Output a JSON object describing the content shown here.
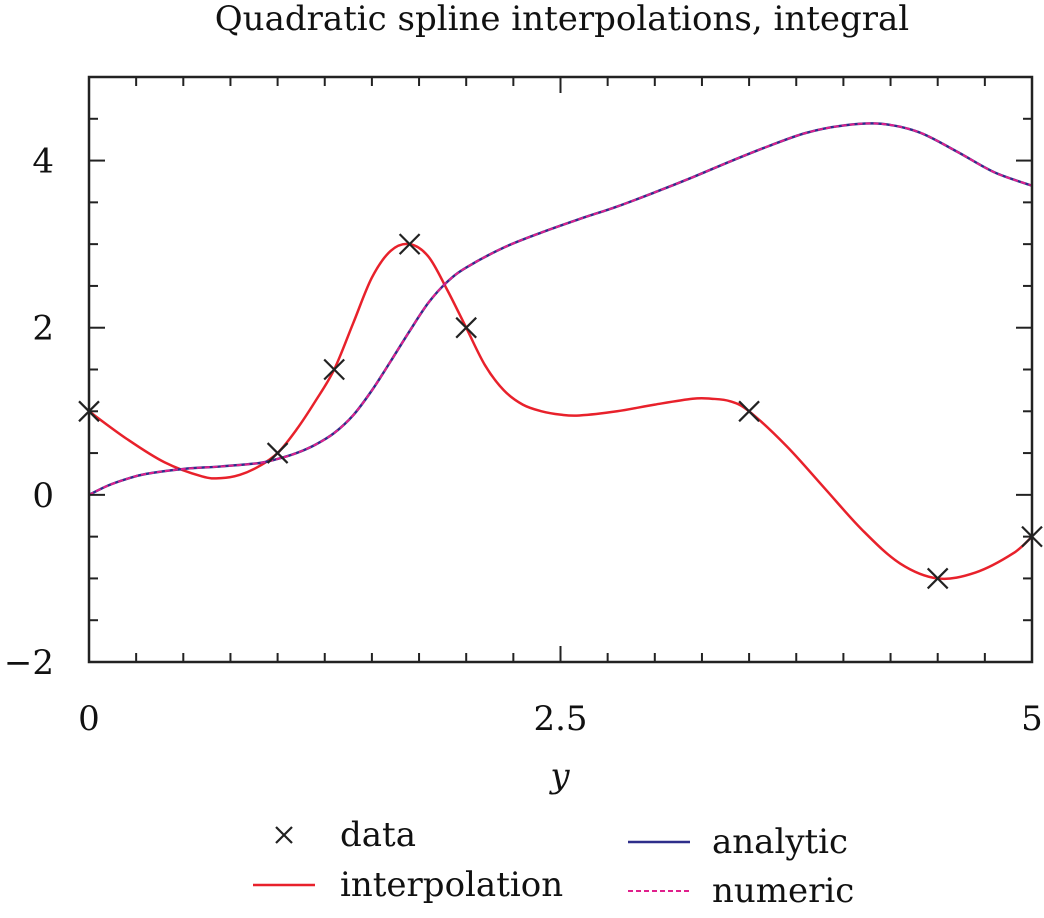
{
  "chart_data": {
    "type": "line",
    "title": "Quadratic spline interpolations, integral",
    "xlabel": "y",
    "ylabel": "",
    "xlim": [
      0,
      5
    ],
    "ylim": [
      -2,
      5
    ],
    "xticks": [
      {
        "value": 0,
        "label": "0"
      },
      {
        "value": 2.5,
        "label": "2.5"
      },
      {
        "value": 5,
        "label": "5"
      }
    ],
    "yticks": [
      {
        "value": -2,
        "label": "−2"
      },
      {
        "value": 0,
        "label": "0"
      },
      {
        "value": 2,
        "label": "2"
      },
      {
        "value": 4,
        "label": "4"
      }
    ],
    "x_minor_step": 0.25,
    "y_minor_step": 0.5,
    "grid": false,
    "legend_position": "bottom",
    "series": [
      {
        "name": "data",
        "kind": "markers",
        "marker": "x",
        "color": "#222222",
        "x": [
          0,
          1.0,
          1.3,
          1.7,
          2.0,
          3.5,
          4.5,
          5.0
        ],
        "y": [
          1.0,
          0.5,
          1.5,
          3.0,
          2.0,
          1.0,
          -1.0,
          -0.5
        ]
      },
      {
        "name": "interpolation",
        "kind": "line",
        "color": "#e8212b",
        "x": [
          0,
          0.2,
          0.4,
          0.6,
          0.7,
          0.8,
          0.9,
          1.0,
          1.1,
          1.2,
          1.3,
          1.4,
          1.5,
          1.6,
          1.7,
          1.8,
          1.9,
          2.0,
          2.1,
          2.2,
          2.3,
          2.4,
          2.5,
          2.6,
          2.8,
          3.0,
          3.2,
          3.3,
          3.4,
          3.5,
          3.7,
          3.9,
          4.1,
          4.3,
          4.5,
          4.7,
          4.9,
          5.0
        ],
        "y": [
          1.0,
          0.67,
          0.39,
          0.22,
          0.2,
          0.24,
          0.34,
          0.5,
          0.78,
          1.12,
          1.5,
          2.05,
          2.6,
          2.92,
          3.0,
          2.85,
          2.45,
          2.0,
          1.55,
          1.25,
          1.08,
          1.0,
          0.96,
          0.95,
          1.0,
          1.08,
          1.15,
          1.15,
          1.12,
          1.0,
          0.58,
          0.08,
          -0.42,
          -0.82,
          -1.0,
          -0.93,
          -0.7,
          -0.5
        ]
      },
      {
        "name": "analytic",
        "kind": "line",
        "color": "#2e2e8a",
        "x": [
          0,
          0.1,
          0.2,
          0.3,
          0.5,
          0.7,
          0.9,
          1.0,
          1.1,
          1.2,
          1.3,
          1.4,
          1.5,
          1.6,
          1.7,
          1.8,
          1.9,
          2.0,
          2.2,
          2.4,
          2.6,
          2.8,
          3.0,
          3.2,
          3.4,
          3.6,
          3.8,
          4.0,
          4.2,
          4.4,
          4.6,
          4.8,
          5.0
        ],
        "y": [
          0.0,
          0.11,
          0.19,
          0.25,
          0.31,
          0.34,
          0.38,
          0.43,
          0.5,
          0.6,
          0.74,
          0.95,
          1.25,
          1.6,
          1.96,
          2.3,
          2.55,
          2.72,
          2.96,
          3.14,
          3.3,
          3.45,
          3.62,
          3.8,
          3.99,
          4.17,
          4.33,
          4.42,
          4.44,
          4.34,
          4.11,
          3.86,
          3.7
        ]
      },
      {
        "name": "numeric",
        "kind": "line",
        "dashed": true,
        "color": "#e0208c",
        "x": [
          0,
          0.1,
          0.2,
          0.3,
          0.5,
          0.7,
          0.9,
          1.0,
          1.1,
          1.2,
          1.3,
          1.4,
          1.5,
          1.6,
          1.7,
          1.8,
          1.9,
          2.0,
          2.2,
          2.4,
          2.6,
          2.8,
          3.0,
          3.2,
          3.4,
          3.6,
          3.8,
          4.0,
          4.2,
          4.4,
          4.6,
          4.8,
          5.0
        ],
        "y": [
          0.0,
          0.11,
          0.19,
          0.25,
          0.31,
          0.34,
          0.38,
          0.43,
          0.5,
          0.6,
          0.74,
          0.95,
          1.25,
          1.6,
          1.96,
          2.3,
          2.55,
          2.72,
          2.96,
          3.14,
          3.3,
          3.45,
          3.62,
          3.8,
          3.99,
          4.17,
          4.33,
          4.42,
          4.44,
          4.34,
          4.11,
          3.86,
          3.7
        ]
      }
    ]
  }
}
